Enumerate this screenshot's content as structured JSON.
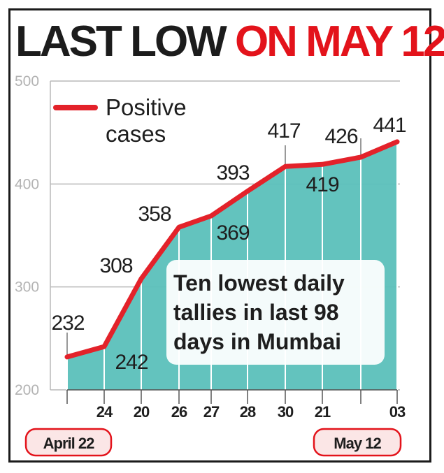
{
  "headline": {
    "part1": "LAST LOW",
    "part2": "ON MAY 12"
  },
  "colors": {
    "line": "#e3222a",
    "area": "#5bc0bb",
    "headline_dark": "#1c1c1c",
    "headline_red": "#e3131b"
  },
  "chart_data": {
    "type": "area",
    "title": "LAST LOW ON MAY 12",
    "x": [
      "22",
      "24",
      "20",
      "26",
      "27",
      "28",
      "30",
      "21",
      "12",
      "03"
    ],
    "x_tick_labels": [
      "",
      "24",
      "20",
      "26",
      "27",
      "28",
      "30",
      "21",
      "",
      "03"
    ],
    "series": [
      {
        "name": "Positive cases",
        "values": [
          232,
          242,
          308,
          358,
          369,
          393,
          417,
          419,
          426,
          441
        ]
      }
    ],
    "data_labels": [
      "232",
      "242",
      "308",
      "358",
      "369",
      "393",
      "417",
      "419",
      "426",
      "441"
    ],
    "ylim": [
      200,
      500
    ],
    "yticks": [
      200,
      300,
      400,
      500
    ],
    "grid": true,
    "legend": {
      "label_line1": "Positive",
      "label_line2": "cases",
      "placement": "top-left"
    },
    "annotation": [
      "Ten lowest daily",
      "tallies in last 98",
      "days in Mumbai"
    ],
    "start_label": "April 22",
    "end_label": "May 12"
  }
}
